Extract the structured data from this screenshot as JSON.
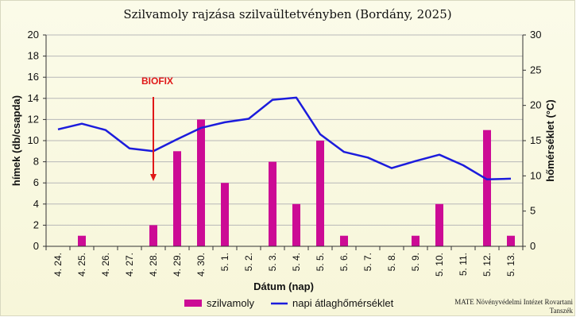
{
  "chart_data": {
    "type": "bar",
    "title": "Szilvamoly rajzása szilvaültetvényben (Bordány, 2025)",
    "xlabel": "Dátum (nap)",
    "ylabel": "hímek (db/csapda)",
    "y2label": "hőmérséklet (°C)",
    "ylim": [
      0,
      20
    ],
    "y2lim": [
      0,
      30
    ],
    "yticks": [
      "0",
      "2",
      "4",
      "6",
      "8",
      "10",
      "12",
      "14",
      "16",
      "18",
      "20"
    ],
    "y2ticks": [
      "0",
      "5",
      "10",
      "15",
      "20",
      "25",
      "30"
    ],
    "grid": true,
    "legend_position": "bottom",
    "categories": [
      "4. 24.",
      "4. 25.",
      "4. 26.",
      "4. 27.",
      "4. 28.",
      "4. 29.",
      "4. 30.",
      "5. 1.",
      "5. 2.",
      "5. 3.",
      "5. 4.",
      "5. 5.",
      "5. 6.",
      "5. 7.",
      "5. 8.",
      "5. 9.",
      "5. 10.",
      "5. 11.",
      "5. 12.",
      "5. 13."
    ],
    "series": [
      {
        "name": "szilvamoly",
        "kind": "bar",
        "axis": "left",
        "color": "#cc0b95",
        "values": [
          0,
          1,
          0,
          0,
          2,
          9,
          12,
          6,
          0,
          8,
          4,
          10,
          1,
          0,
          0,
          1,
          4,
          0,
          11,
          1
        ]
      },
      {
        "name": "napi átlaghőmérséklet",
        "kind": "line",
        "axis": "right",
        "color": "#1c1cdc",
        "values": [
          16.6,
          17.4,
          16.5,
          13.9,
          13.5,
          15.2,
          16.8,
          17.6,
          18.1,
          20.8,
          21.1,
          15.9,
          13.4,
          12.6,
          11.1,
          12.1,
          13.0,
          11.5,
          9.5,
          9.6
        ]
      }
    ],
    "annotation": {
      "text": "BIOFIX",
      "category": "4. 28.",
      "color": "#e01818"
    },
    "credit": [
      "MATE Növényvédelmi Intézet Rovartani",
      "Tanszék"
    ]
  }
}
